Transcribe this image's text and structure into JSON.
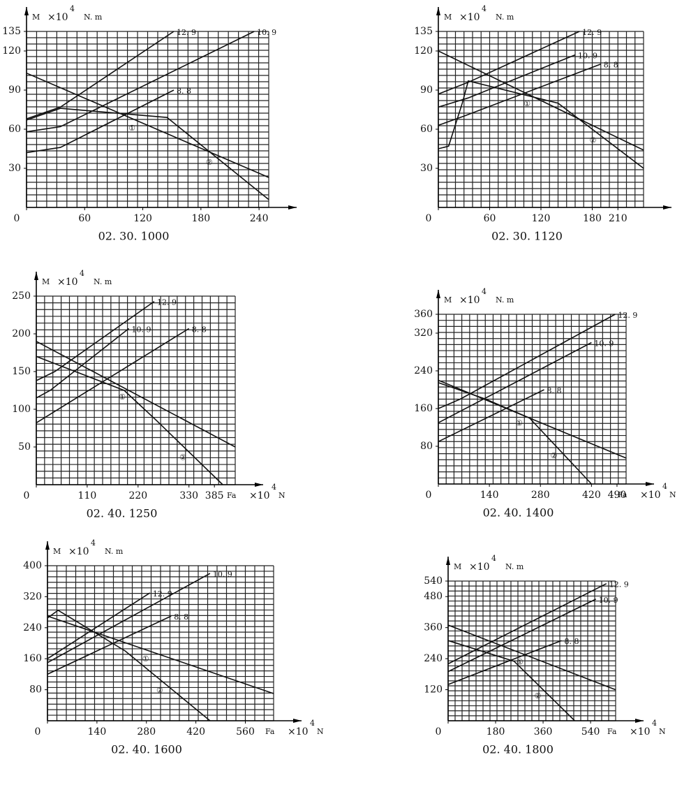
{
  "chart_data": [
    {
      "type": "line",
      "title": "02. 30. 1000",
      "ylabel": "M",
      "yunit": "×10",
      "yunit_power": "4",
      "yunit_suffix": "N. m",
      "xlim": [
        0,
        250
      ],
      "ylim": [
        0,
        135
      ],
      "xticks": [
        0,
        60,
        120,
        180,
        240
      ],
      "yticks": [
        30,
        60,
        90,
        120,
        135
      ],
      "grid": true,
      "series": [
        {
          "name": "12. 9",
          "color": "#111",
          "x": [
            0,
            35,
            152
          ],
          "values": [
            68,
            77,
            135
          ]
        },
        {
          "name": "10. 9",
          "color": "#111",
          "x": [
            0,
            35,
            235
          ],
          "values": [
            58,
            62,
            135
          ]
        },
        {
          "name": "8. 8",
          "color": "#111",
          "x": [
            0,
            35,
            152
          ],
          "values": [
            42,
            46,
            90
          ]
        },
        {
          "name": "①",
          "color": "#111",
          "x": [
            0,
            250
          ],
          "values": [
            103,
            23
          ]
        },
        {
          "name": "②",
          "color": "#111",
          "x": [
            0,
            35,
            145,
            250
          ],
          "values": [
            67,
            76,
            69,
            6
          ]
        }
      ]
    },
    {
      "type": "line",
      "title": "02. 30. 1120",
      "ylabel": "M",
      "yunit": "×10",
      "yunit_power": "4",
      "yunit_suffix": "N. m",
      "xlim": [
        0,
        240
      ],
      "ylim": [
        0,
        135
      ],
      "xticks": [
        0,
        60,
        120,
        180,
        210
      ],
      "yticks": [
        30,
        60,
        90,
        120,
        135
      ],
      "grid": true,
      "series": [
        {
          "name": "12. 9",
          "color": "#111",
          "x": [
            0,
            35,
            165
          ],
          "values": [
            87,
            96,
            135
          ]
        },
        {
          "name": "10. 9",
          "color": "#111",
          "x": [
            0,
            35,
            160
          ],
          "values": [
            77,
            84,
            117
          ]
        },
        {
          "name": "8. 8",
          "color": "#111",
          "x": [
            0,
            30,
            190
          ],
          "values": [
            63,
            70,
            110
          ]
        },
        {
          "name": "①",
          "color": "#111",
          "x": [
            0,
            240
          ],
          "values": [
            120,
            44
          ]
        },
        {
          "name": "②",
          "color": "#111",
          "x": [
            0,
            12,
            28,
            35,
            140,
            240
          ],
          "values": [
            45,
            47,
            80,
            97,
            80,
            30
          ]
        }
      ]
    },
    {
      "type": "line",
      "title": "02. 40. 1250",
      "ylabel": "M",
      "yunit": "×10",
      "yunit_power": "4",
      "yunit_suffix": "N. m",
      "xlabel": "Fa",
      "xunit": "×10",
      "xunit_power": "4",
      "xunit_suffix": "N",
      "xlim": [
        0,
        430
      ],
      "ylim": [
        0,
        250
      ],
      "xticks": [
        0,
        110,
        220,
        330,
        385
      ],
      "yticks": [
        50,
        100,
        150,
        200,
        250
      ],
      "grid": true,
      "series": [
        {
          "name": "12. 9",
          "color": "#111",
          "x": [
            0,
            40,
            255
          ],
          "values": [
            138,
            150,
            243
          ]
        },
        {
          "name": "10. 9",
          "color": "#111",
          "x": [
            0,
            30,
            200
          ],
          "values": [
            115,
            125,
            207
          ]
        },
        {
          "name": "8. 8",
          "color": "#111",
          "x": [
            0,
            330
          ],
          "values": [
            82,
            207
          ]
        },
        {
          "name": "①",
          "color": "#111",
          "x": [
            0,
            430
          ],
          "values": [
            190,
            50
          ]
        },
        {
          "name": "②",
          "color": "#111",
          "x": [
            0,
            190,
            260,
            403
          ],
          "values": [
            170,
            125,
            85,
            0
          ]
        }
      ]
    },
    {
      "type": "line",
      "title": "02. 40. 1400",
      "ylabel": "M",
      "yunit": "×10",
      "yunit_power": "4",
      "yunit_suffix": "N. m",
      "xlabel": "Fa",
      "xunit": "×10",
      "xunit_power": "4",
      "xunit_suffix": "N",
      "xlim": [
        0,
        515
      ],
      "ylim": [
        0,
        360
      ],
      "xticks": [
        0,
        140,
        280,
        420,
        490
      ],
      "yticks": [
        80,
        160,
        240,
        320,
        360
      ],
      "grid": true,
      "series": [
        {
          "name": "12. 9",
          "color": "#111",
          "x": [
            0,
            60,
            485
          ],
          "values": [
            160,
            180,
            360
          ]
        },
        {
          "name": "10. 9",
          "color": "#111",
          "x": [
            0,
            420
          ],
          "values": [
            130,
            300
          ]
        },
        {
          "name": "8. 8",
          "color": "#111",
          "x": [
            0,
            290
          ],
          "values": [
            90,
            200
          ]
        },
        {
          "name": "①",
          "color": "#111",
          "x": [
            0,
            515
          ],
          "values": [
            220,
            55
          ]
        },
        {
          "name": "②",
          "color": "#111",
          "x": [
            0,
            130,
            250,
            420
          ],
          "values": [
            215,
            180,
            140,
            0
          ]
        }
      ]
    },
    {
      "type": "line",
      "title": "02. 40. 1600",
      "ylabel": "M",
      "yunit": "×10",
      "yunit_power": "4",
      "yunit_suffix": "N. m",
      "xlabel": "Fa",
      "xunit": "×10",
      "xunit_power": "4",
      "xunit_suffix": "N",
      "xlim": [
        0,
        640
      ],
      "ylim": [
        0,
        400
      ],
      "xticks": [
        0,
        140,
        280,
        420,
        560
      ],
      "yticks": [
        80,
        160,
        240,
        320,
        400
      ],
      "grid": true,
      "series": [
        {
          "name": "10. 9",
          "color": "#111",
          "x": [
            0,
            460
          ],
          "values": [
            150,
            380
          ]
        },
        {
          "name": "12. 9",
          "color": "#111",
          "x": [
            0,
            290
          ],
          "values": [
            160,
            330
          ]
        },
        {
          "name": "8. 8",
          "color": "#111",
          "x": [
            0,
            350
          ],
          "values": [
            120,
            270
          ]
        },
        {
          "name": "①",
          "color": "#111",
          "x": [
            0,
            640
          ],
          "values": [
            270,
            70
          ]
        },
        {
          "name": "②",
          "color": "#111",
          "x": [
            0,
            30,
            220,
            460
          ],
          "values": [
            265,
            285,
            180,
            0
          ]
        }
      ]
    },
    {
      "type": "line",
      "title": "02. 40. 1800",
      "ylabel": "M",
      "yunit": "×10",
      "yunit_power": "4",
      "yunit_suffix": "N. m",
      "xlabel": "Fa",
      "xunit": "×10",
      "xunit_power": "4",
      "xunit_suffix": "N",
      "xlim": [
        0,
        635
      ],
      "ylim": [
        0,
        540
      ],
      "xticks": [
        0,
        180,
        360,
        540
      ],
      "yticks": [
        120,
        240,
        360,
        480,
        540
      ],
      "grid": true,
      "series": [
        {
          "name": "12. 9",
          "color": "#111",
          "x": [
            0,
            600
          ],
          "values": [
            220,
            530
          ]
        },
        {
          "name": "10. 9",
          "color": "#111",
          "x": [
            0,
            560
          ],
          "values": [
            190,
            470
          ]
        },
        {
          "name": "8. 8",
          "color": "#111",
          "x": [
            0,
            430
          ],
          "values": [
            140,
            310
          ]
        },
        {
          "name": "①",
          "color": "#111",
          "x": [
            0,
            635
          ],
          "values": [
            370,
            120
          ]
        },
        {
          "name": "②",
          "color": "#111",
          "x": [
            0,
            250,
            480
          ],
          "values": [
            310,
            230,
            0
          ]
        }
      ]
    }
  ]
}
